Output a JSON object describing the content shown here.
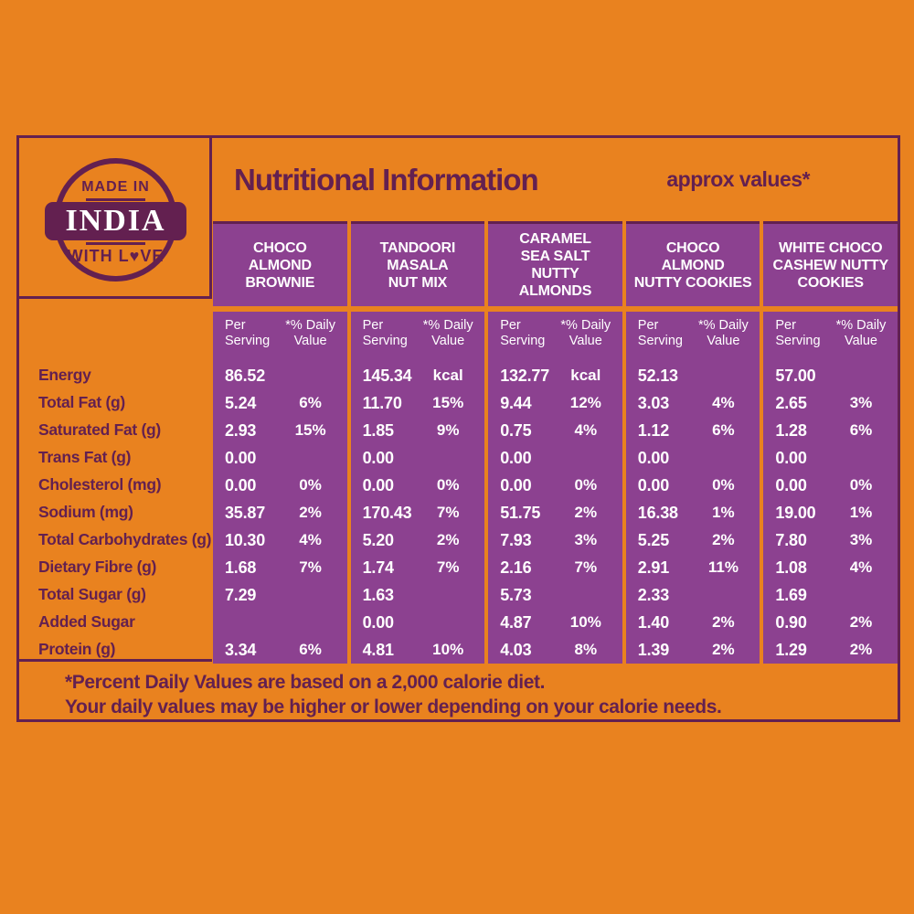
{
  "colors": {
    "background_orange": "#E9821F",
    "table_purple": "#8C4190",
    "dark_plum": "#632050",
    "text_white": "#FFFFFF"
  },
  "badge": {
    "line1": "MADE IN",
    "line2": "INDIA",
    "line3": "WITH L♥VE"
  },
  "header": {
    "title": "Nutritional Information",
    "approx_note": "approx values*"
  },
  "table": {
    "subheader": {
      "per_line1": "Per",
      "per_line2": "Serving",
      "daily_line1": "*% Daily",
      "daily_line2": "Value"
    },
    "row_labels": [
      "Energy",
      "Total Fat (g)",
      "Saturated Fat (g)",
      "Trans Fat (g)",
      "Cholesterol (mg)",
      "Sodium (mg)",
      "Total Carbohydrates (g)",
      "Dietary Fibre (g)",
      "Total Sugar (g)",
      "Added Sugar",
      "Protein (g)"
    ],
    "products": [
      {
        "name_lines": [
          "CHOCO",
          "ALMOND",
          "BROWNIE"
        ],
        "per_serving": [
          "86.52",
          "5.24",
          "2.93",
          "0.00",
          "0.00",
          "35.87",
          "10.30",
          "1.68",
          "7.29",
          "",
          "3.34"
        ],
        "daily_value": [
          "",
          "6%",
          "15%",
          "",
          "0%",
          "2%",
          "4%",
          "7%",
          "",
          "",
          "6%"
        ]
      },
      {
        "name_lines": [
          "TANDOORI",
          "MASALA",
          "NUT MIX"
        ],
        "per_serving": [
          "145.34",
          "11.70",
          "1.85",
          "0.00",
          "0.00",
          "170.43",
          "5.20",
          "1.74",
          "1.63",
          "0.00",
          "4.81"
        ],
        "daily_value": [
          "kcal",
          "15%",
          "9%",
          "",
          "0%",
          "7%",
          "2%",
          "7%",
          "",
          "",
          "10%"
        ]
      },
      {
        "name_lines": [
          "CARAMEL",
          "SEA SALT",
          "NUTTY",
          "ALMONDS"
        ],
        "per_serving": [
          "132.77",
          "9.44",
          "0.75",
          "0.00",
          "0.00",
          "51.75",
          "7.93",
          "2.16",
          "5.73",
          "4.87",
          "4.03"
        ],
        "daily_value": [
          "kcal",
          "12%",
          "4%",
          "",
          "0%",
          "2%",
          "3%",
          "7%",
          "",
          "10%",
          "8%"
        ]
      },
      {
        "name_lines": [
          "CHOCO",
          "ALMOND",
          "NUTTY COOKIES"
        ],
        "per_serving": [
          "52.13",
          "3.03",
          "1.12",
          "0.00",
          "0.00",
          "16.38",
          "5.25",
          "2.91",
          "2.33",
          "1.40",
          "1.39"
        ],
        "daily_value": [
          "",
          "4%",
          "6%",
          "",
          "0%",
          "1%",
          "2%",
          "11%",
          "",
          "2%",
          "2%"
        ]
      },
      {
        "name_lines": [
          "WHITE CHOCO",
          "CASHEW NUTTY",
          "COOKIES"
        ],
        "per_serving": [
          "57.00",
          "2.65",
          "1.28",
          "0.00",
          "0.00",
          "19.00",
          "7.80",
          "1.08",
          "1.69",
          "0.90",
          "1.29"
        ],
        "daily_value": [
          "",
          "3%",
          "6%",
          "",
          "0%",
          "1%",
          "3%",
          "4%",
          "",
          "2%",
          "2%"
        ]
      }
    ]
  },
  "footnote": {
    "line1": "*Percent Daily Values are based on a 2,000 calorie diet.",
    "line2": "Your daily values may be higher or lower depending on your calorie needs."
  }
}
